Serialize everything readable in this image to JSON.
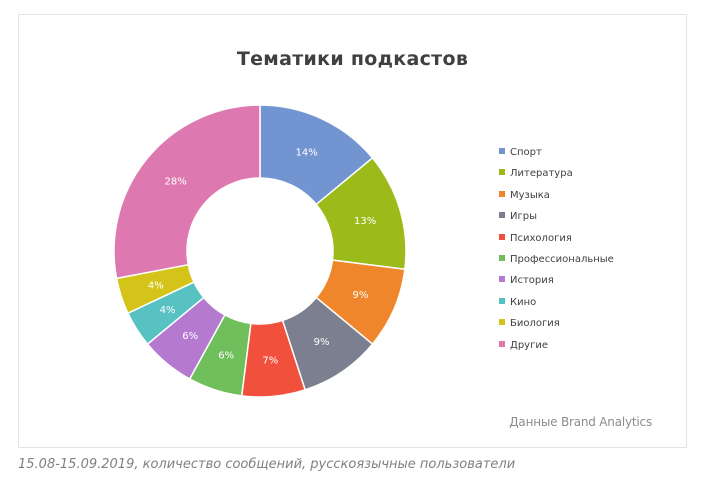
{
  "chart_data": {
    "type": "pie",
    "title": "Тематики  подкастов",
    "donut": true,
    "legend_position": "right",
    "categories": [
      "Спорт",
      "Литература",
      "Музыка",
      "Игры",
      "Психология",
      "Профессиональные",
      "История",
      "Кино",
      "Биология",
      "Другие"
    ],
    "values": [
      14,
      13,
      9,
      9,
      7,
      6,
      6,
      4,
      4,
      28
    ],
    "labels": [
      "14%",
      "13%",
      "9%",
      "9%",
      "7%",
      "6%",
      "6%",
      "4%",
      "4%",
      "28%"
    ],
    "colors": [
      "#7295d2",
      "#9cbb1a",
      "#f0862b",
      "#7c7f90",
      "#f0503c",
      "#6fbf5c",
      "#b57ad0",
      "#58c2c2",
      "#d4c319",
      "#de78b0"
    ]
  },
  "source_note": "Данные Brand Analytics",
  "caption": "15.08-15.09.2019, количество сообщений, русскоязычные пользователи"
}
